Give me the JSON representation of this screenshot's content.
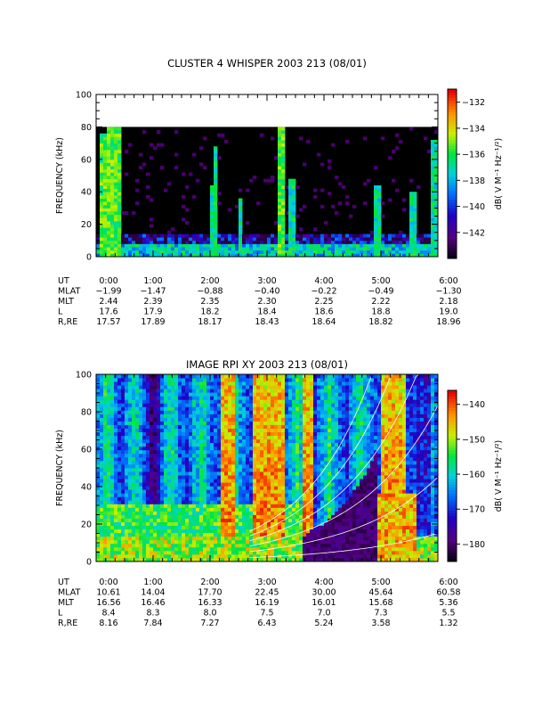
{
  "chart_data": [
    {
      "type": "heatmap",
      "title": "CLUSTER 4 WHISPER 2003 213 (08/01)",
      "ylabel": "FREQUENCY (kHz)",
      "ylim": [
        0,
        100
      ],
      "y_ticks": [
        "0",
        "20",
        "40",
        "60",
        "80",
        "100"
      ],
      "x_ticks": [
        "0:00",
        "1:00",
        "2:00",
        "3:00",
        "4:00",
        "5:00",
        "6:00"
      ],
      "data_freq_max": 80,
      "colorbar": {
        "label": "dB( V M⁻¹ Hz⁻¹/²)",
        "range": [
          -144,
          -131
        ],
        "ticks": [
          "-132",
          "-134",
          "-136",
          "-138",
          "-140",
          "-142"
        ]
      },
      "table": {
        "row_labels": [
          "UT",
          "MLAT",
          "MLT",
          "L",
          "R,RE"
        ],
        "rows": [
          [
            "0:00",
            "1:00",
            "2:00",
            "3:00",
            "4:00",
            "5:00",
            "6:00"
          ],
          [
            "-1.99",
            "-1.47",
            "-0.88",
            "-0.40",
            "-0.22",
            "-0.49",
            "-1.30"
          ],
          [
            "2.44",
            "2.39",
            "2.35",
            "2.30",
            "2.25",
            "2.22",
            "2.18"
          ],
          [
            "17.6",
            "17.9",
            "18.2",
            "18.4",
            "18.6",
            "18.8",
            "19.0"
          ],
          [
            "17.57",
            "17.89",
            "18.17",
            "18.43",
            "18.64",
            "18.82",
            "18.96"
          ]
        ]
      }
    },
    {
      "type": "heatmap",
      "title": "IMAGE RPI XY 2003 213 (08/01)",
      "ylabel": "FREQUENCY (kHz)",
      "ylim": [
        0,
        100
      ],
      "y_ticks": [
        "0",
        "20",
        "40",
        "60",
        "80",
        "100"
      ],
      "x_ticks": [
        "0:00",
        "1:00",
        "2:00",
        "3:00",
        "4:00",
        "5:00",
        "6:00"
      ],
      "colorbar": {
        "label": "dB( V M⁻¹ Hz⁻¹/²)",
        "range": [
          -185,
          -136
        ],
        "ticks": [
          "-140",
          "-150",
          "-160",
          "-170",
          "-180"
        ]
      },
      "table": {
        "row_labels": [
          "UT",
          "MLAT",
          "MLT",
          "L",
          "R,RE"
        ],
        "rows": [
          [
            "0:00",
            "1:00",
            "2:00",
            "3:00",
            "4:00",
            "5:00",
            "6:00"
          ],
          [
            "10.61",
            "14.04",
            "17.70",
            "22.45",
            "30.00",
            "45.64",
            "60.58"
          ],
          [
            "16.56",
            "16.46",
            "16.33",
            "16.19",
            "16.01",
            "15.68",
            "5.36"
          ],
          [
            "8.4",
            "8.3",
            "8.0",
            "7.5",
            "7.0",
            "7.3",
            "5.5"
          ],
          [
            "8.16",
            "7.84",
            "7.27",
            "6.43",
            "5.24",
            "3.58",
            "1.32"
          ]
        ]
      }
    }
  ]
}
